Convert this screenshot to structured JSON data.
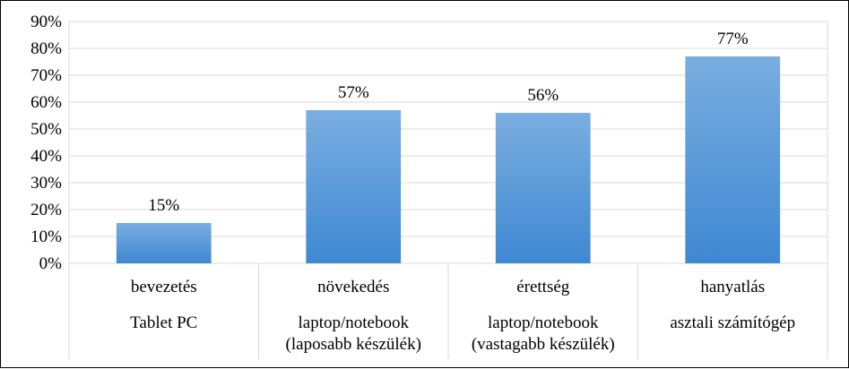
{
  "chart_data": {
    "type": "bar",
    "title": "",
    "xlabel": "",
    "ylabel": "",
    "ylim": [
      0,
      90
    ],
    "yticks": [
      "0%",
      "10%",
      "20%",
      "30%",
      "40%",
      "50%",
      "60%",
      "70%",
      "80%",
      "90%"
    ],
    "grid": true,
    "legend": "none",
    "categories": [
      {
        "stage": "bevezetés",
        "device_lines": [
          "Tablet PC"
        ]
      },
      {
        "stage": "növekedés",
        "device_lines": [
          "laptop/notebook",
          "(laposabb készülék)"
        ]
      },
      {
        "stage": "érettség",
        "device_lines": [
          "laptop/notebook",
          "(vastagabb készülék)"
        ]
      },
      {
        "stage": "hanyatlás",
        "device_lines": [
          "asztali számítógép"
        ]
      }
    ],
    "values": [
      15,
      57,
      56,
      77
    ],
    "data_labels": [
      "15%",
      "57%",
      "56%",
      "77%"
    ],
    "bar_color_top": "#7aaee0",
    "bar_color_bottom": "#3f88d2",
    "grid_color": "#d9d9d9"
  }
}
